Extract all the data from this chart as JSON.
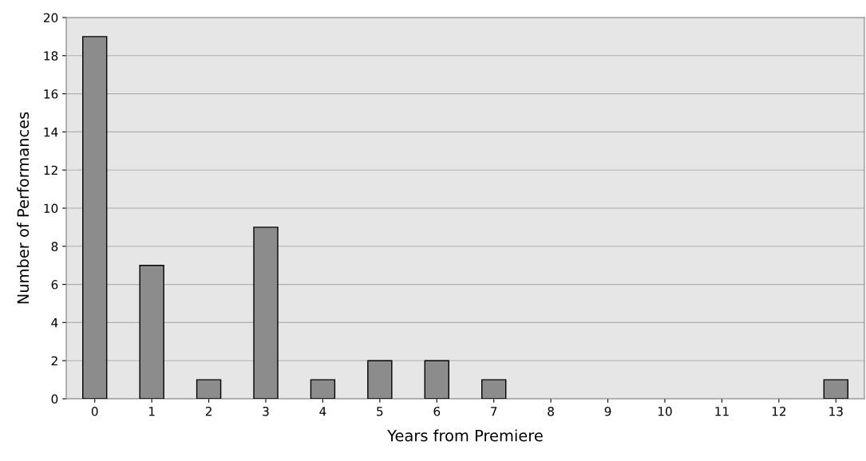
{
  "chart_data": {
    "type": "bar",
    "xlabel": "Years from Premiere",
    "ylabel": "Number of Performances",
    "categories": [
      "0",
      "1",
      "2",
      "3",
      "4",
      "5",
      "6",
      "7",
      "8",
      "9",
      "10",
      "11",
      "12",
      "13"
    ],
    "values": [
      19,
      7,
      1,
      9,
      1,
      2,
      2,
      1,
      0,
      0,
      0,
      0,
      0,
      1
    ],
    "color": "#8c8c8c",
    "ylim": [
      0,
      20
    ],
    "yticks": [
      0,
      2,
      4,
      6,
      8,
      10,
      12,
      14,
      16,
      18,
      20
    ],
    "grid": "y",
    "legend": false
  }
}
